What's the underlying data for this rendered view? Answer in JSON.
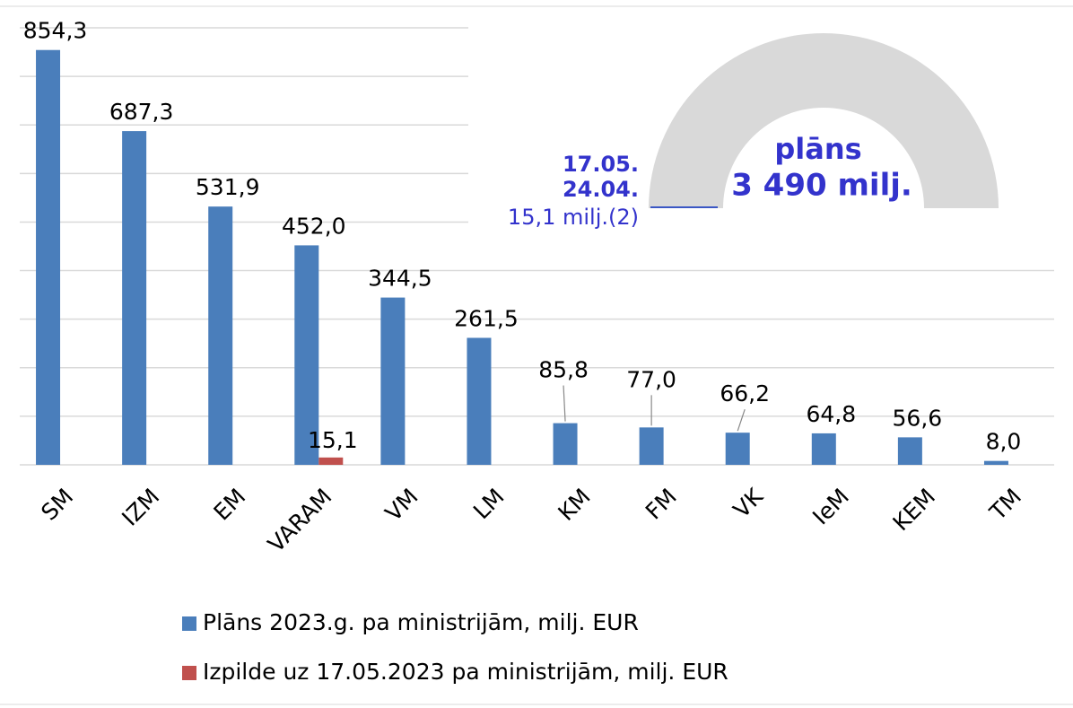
{
  "chart_data": {
    "type": "bar",
    "categories": [
      "SM",
      "IZM",
      "EM",
      "VARAM",
      "VM",
      "LM",
      "KM",
      "FM",
      "VK",
      "IeM",
      "KEM",
      "TM"
    ],
    "series": [
      {
        "name": "Plāns 2023.g. pa ministrijām, milj. EUR",
        "color": "#4a7ebb",
        "values": [
          854.3,
          687.3,
          531.9,
          452.0,
          344.5,
          261.5,
          85.8,
          77.0,
          66.2,
          64.8,
          56.6,
          8.0
        ],
        "value_labels": [
          "854,3",
          "687,3",
          "531,9",
          "452,0",
          "344,5",
          "261,5",
          "85,8",
          "77,0",
          "66,2",
          "64,8",
          "56,6",
          "8,0"
        ]
      },
      {
        "name": "Izpilde uz 17.05.2023 pa ministrijām, milj. EUR",
        "color": "#c0504d",
        "values": [
          null,
          null,
          null,
          15.1,
          null,
          null,
          null,
          null,
          null,
          null,
          null,
          null
        ],
        "value_labels": [
          null,
          null,
          null,
          "15,1",
          null,
          null,
          null,
          null,
          null,
          null,
          null,
          null
        ]
      }
    ],
    "ylim": [
      0,
      900
    ],
    "yticks": [
      0,
      100,
      200,
      300,
      400,
      500,
      600,
      700,
      800,
      900
    ],
    "grid": true,
    "gauge": {
      "title": "plāns",
      "total": "3 490 milj.",
      "date1": "17.05.",
      "date2": "24.04.",
      "done": "15,1 milj.(2)"
    }
  }
}
